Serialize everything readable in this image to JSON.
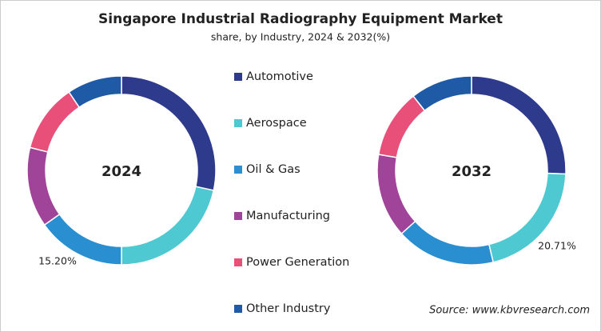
{
  "chart_data": [
    {
      "type": "donut",
      "title": "Singapore Industrial Radiography Equipment Market",
      "subtitle": "share, by Industry, 2024 & 2032(%)",
      "source": "Source: www.kbvresearch.com",
      "label": "2024",
      "categories": [
        "Automotive",
        "Aerospace",
        "Oil & Gas",
        "Manufacturing",
        "Power Generation",
        "Other Industry"
      ],
      "colors": [
        "#2e3a8c",
        "#4ec9d1",
        "#2a8fd0",
        "#a0449a",
        "#e8507a",
        "#1f5aa6"
      ],
      "values": [
        28.4,
        21.6,
        15.2,
        13.7,
        11.7,
        9.4
      ],
      "value_labels": [
        null,
        null,
        "15.20%",
        null,
        null,
        null
      ]
    },
    {
      "type": "donut",
      "label": "2032",
      "values": [
        25.6,
        20.71,
        17,
        14.4,
        11.7,
        10.59
      ],
      "value_labels": [
        null,
        "20.71%",
        null,
        null,
        null,
        null
      ]
    }
  ]
}
